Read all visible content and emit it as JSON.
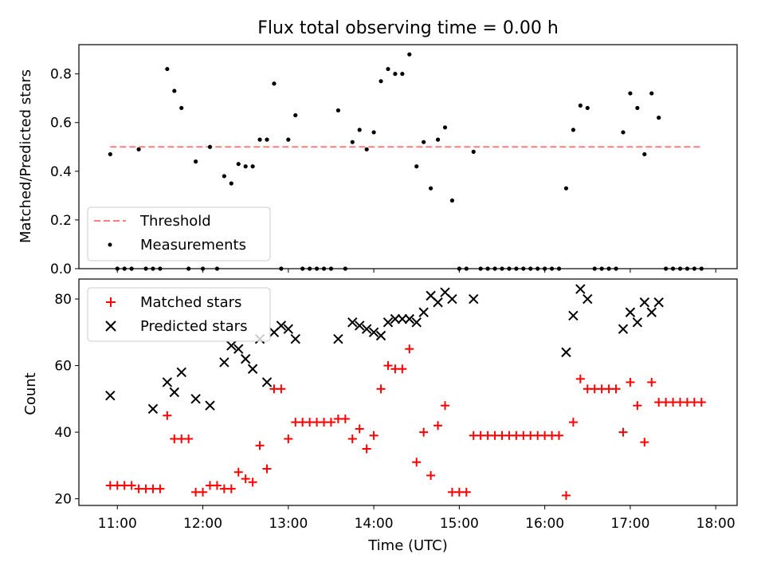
{
  "title": "Flux total observing time = 0.00 h",
  "xlabel": "Time (UTC)",
  "colors": {
    "threshold": "#ff7f7f",
    "matched": "#ff0000",
    "predicted": "#000000",
    "measurement": "#000000"
  },
  "chart_data": [
    {
      "type": "scatter",
      "title": "Flux total observing time = 0.00 h",
      "xlabel": "",
      "ylabel": "Matched/Predicted stars",
      "ylim": [
        0,
        0.92
      ],
      "yticks": [
        0.0,
        0.2,
        0.4,
        0.6,
        0.8
      ],
      "ytick_labels": [
        "0.0",
        "0.2",
        "0.4",
        "0.6",
        "0.8"
      ],
      "xlim": [
        "10:33",
        "18:15"
      ],
      "xticks": [
        "11:00",
        "12:00",
        "13:00",
        "14:00",
        "15:00",
        "16:00",
        "17:00",
        "18:00"
      ],
      "grid": false,
      "legend_position": "lower-left",
      "series": [
        {
          "name": "Threshold",
          "kind": "dashed-line",
          "x": [
            "10:55",
            "17:50"
          ],
          "y": [
            0.5,
            0.5
          ]
        },
        {
          "name": "Measurements",
          "kind": "dots",
          "x": [
            "10:55",
            "11:00",
            "11:05",
            "11:10",
            "11:15",
            "11:20",
            "11:25",
            "11:30",
            "11:35",
            "11:40",
            "11:45",
            "11:50",
            "11:55",
            "12:00",
            "12:05",
            "12:10",
            "12:15",
            "12:20",
            "12:25",
            "12:30",
            "12:35",
            "12:40",
            "12:45",
            "12:50",
            "12:55",
            "13:00",
            "13:05",
            "13:10",
            "13:15",
            "13:20",
            "13:25",
            "13:30",
            "13:35",
            "13:40",
            "13:45",
            "13:50",
            "13:55",
            "14:00",
            "14:05",
            "14:10",
            "14:15",
            "14:20",
            "14:25",
            "14:30",
            "14:35",
            "14:40",
            "14:45",
            "14:50",
            "14:55",
            "15:00",
            "15:05",
            "15:10",
            "15:15",
            "15:20",
            "15:25",
            "15:30",
            "15:35",
            "15:40",
            "15:45",
            "15:50",
            "15:55",
            "16:00",
            "16:05",
            "16:10",
            "16:15",
            "16:20",
            "16:25",
            "16:30",
            "16:35",
            "16:40",
            "16:45",
            "16:50",
            "16:55",
            "17:00",
            "17:05",
            "17:10",
            "17:15",
            "17:20",
            "17:25",
            "17:30",
            "17:35",
            "17:40",
            "17:45",
            "17:50"
          ],
          "y": [
            0.47,
            0.0,
            0.0,
            0.0,
            0.49,
            0.0,
            0.0,
            0.0,
            0.82,
            0.73,
            0.66,
            0.0,
            0.44,
            0.0,
            0.5,
            0.0,
            0.38,
            0.35,
            0.43,
            0.42,
            0.42,
            0.53,
            0.53,
            0.76,
            0.0,
            0.53,
            0.63,
            0.0,
            0.0,
            0.0,
            0.0,
            0.0,
            0.65,
            0.0,
            0.52,
            0.57,
            0.49,
            0.56,
            0.77,
            0.82,
            0.8,
            0.8,
            0.88,
            0.42,
            0.52,
            0.33,
            0.53,
            0.58,
            0.28,
            0.0,
            0.0,
            0.48,
            0.0,
            0.0,
            0.0,
            0.0,
            0.0,
            0.0,
            0.0,
            0.0,
            0.0,
            0.0,
            0.0,
            0.0,
            0.33,
            0.57,
            0.67,
            0.66,
            0.0,
            0.0,
            0.0,
            0.0,
            0.56,
            0.72,
            0.66,
            0.47,
            0.72,
            0.62,
            0.0,
            0.0,
            0.0,
            0.0,
            0.0,
            0.0
          ]
        }
      ]
    },
    {
      "type": "scatter",
      "xlabel": "Time (UTC)",
      "ylabel": "Count",
      "ylim": [
        18,
        86
      ],
      "yticks": [
        20,
        40,
        60,
        80
      ],
      "ytick_labels": [
        "20",
        "40",
        "60",
        "80"
      ],
      "xlim": [
        "10:33",
        "18:15"
      ],
      "xticks": [
        "11:00",
        "12:00",
        "13:00",
        "14:00",
        "15:00",
        "16:00",
        "17:00",
        "18:00"
      ],
      "xtick_labels": [
        "11:00",
        "12:00",
        "13:00",
        "14:00",
        "15:00",
        "16:00",
        "17:00",
        "18:00"
      ],
      "grid": false,
      "legend_position": "top-left",
      "series": [
        {
          "name": "Matched stars",
          "marker": "+",
          "x": [
            "10:55",
            "11:00",
            "11:05",
            "11:10",
            "11:15",
            "11:20",
            "11:25",
            "11:30",
            "11:35",
            "11:40",
            "11:45",
            "11:50",
            "11:55",
            "12:00",
            "12:05",
            "12:10",
            "12:15",
            "12:20",
            "12:25",
            "12:30",
            "12:35",
            "12:40",
            "12:45",
            "12:50",
            "12:55",
            "13:00",
            "13:05",
            "13:10",
            "13:15",
            "13:20",
            "13:25",
            "13:30",
            "13:35",
            "13:40",
            "13:45",
            "13:50",
            "13:55",
            "14:00",
            "14:05",
            "14:10",
            "14:15",
            "14:20",
            "14:25",
            "14:30",
            "14:35",
            "14:40",
            "14:45",
            "14:50",
            "14:55",
            "15:00",
            "15:05",
            "15:10",
            "15:15",
            "15:20",
            "15:25",
            "15:30",
            "15:35",
            "15:40",
            "15:45",
            "15:50",
            "15:55",
            "16:00",
            "16:05",
            "16:10",
            "16:15",
            "16:20",
            "16:25",
            "16:30",
            "16:35",
            "16:40",
            "16:45",
            "16:50",
            "16:55",
            "17:00",
            "17:05",
            "17:10",
            "17:15",
            "17:20",
            "17:25",
            "17:30",
            "17:35",
            "17:40",
            "17:45",
            "17:50"
          ],
          "y": [
            24,
            24,
            24,
            24,
            23,
            23,
            23,
            23,
            45,
            38,
            38,
            38,
            22,
            22,
            24,
            24,
            23,
            23,
            28,
            26,
            25,
            36,
            29,
            53,
            53,
            38,
            43,
            43,
            43,
            43,
            43,
            43,
            44,
            44,
            38,
            41,
            35,
            39,
            53,
            60,
            59,
            59,
            65,
            31,
            40,
            27,
            42,
            48,
            22,
            22,
            22,
            39,
            39,
            39,
            39,
            39,
            39,
            39,
            39,
            39,
            39,
            39,
            39,
            39,
            21,
            43,
            56,
            53,
            53,
            53,
            53,
            53,
            40,
            55,
            48,
            37,
            55,
            49,
            49,
            49,
            49,
            49,
            49,
            49
          ]
        },
        {
          "name": "Predicted stars",
          "marker": "x",
          "x": [
            "10:55",
            "11:25",
            "11:35",
            "11:40",
            "11:45",
            "11:55",
            "12:05",
            "12:15",
            "12:20",
            "12:25",
            "12:30",
            "12:35",
            "12:40",
            "12:45",
            "12:50",
            "12:55",
            "13:00",
            "13:05",
            "13:35",
            "13:45",
            "13:50",
            "13:55",
            "14:00",
            "14:05",
            "14:10",
            "14:15",
            "14:20",
            "14:25",
            "14:30",
            "14:35",
            "14:40",
            "14:45",
            "14:50",
            "14:55",
            "15:10",
            "16:15",
            "16:20",
            "16:25",
            "16:30",
            "16:55",
            "17:00",
            "17:05",
            "17:10",
            "17:15",
            "17:20"
          ],
          "y": [
            51,
            47,
            55,
            52,
            58,
            50,
            48,
            61,
            66,
            65,
            62,
            59,
            68,
            55,
            70,
            72,
            71,
            68,
            68,
            73,
            72,
            71,
            70,
            69,
            73,
            74,
            74,
            74,
            73,
            76,
            81,
            79,
            82,
            80,
            80,
            64,
            75,
            83,
            80,
            71,
            76,
            73,
            79,
            76,
            79
          ]
        }
      ]
    }
  ]
}
